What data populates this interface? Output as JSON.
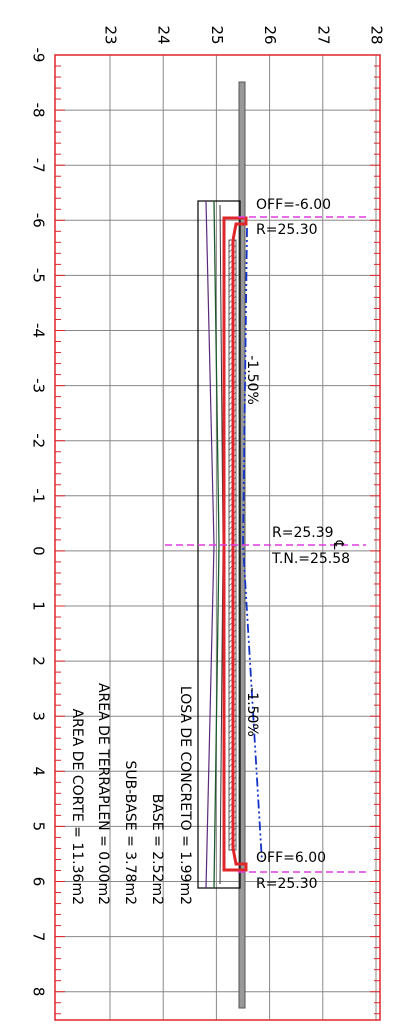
{
  "elevation_labels": [
    "23",
    "24",
    "25",
    "26",
    "27",
    "28"
  ],
  "offset_labels": [
    "-9",
    "-8",
    "-7",
    "-6",
    "-5",
    "-4",
    "-3",
    "-2",
    "-1",
    "0",
    "1",
    "2",
    "3",
    "4",
    "5",
    "6",
    "7",
    "8"
  ],
  "annotations": {
    "left_off": "OFF=-6.00",
    "left_r": "R=25.30",
    "center_r": "R=25.39",
    "center_tn": "T.N.=25.58",
    "right_off": "OFF=6.00",
    "right_r": "R=25.30",
    "slope_left": "-1.50%",
    "slope_right": "-1.50%",
    "centerline": "℄"
  },
  "areas": [
    "LOSA DE CONCRETO = 1.99m2",
    "BASE = 2.52m2",
    "SUB-BASE = 3.78m2",
    "AREA DE TERRAPLEN = 0.00m2",
    "AREA DE CORTE = 11.36m2"
  ]
}
